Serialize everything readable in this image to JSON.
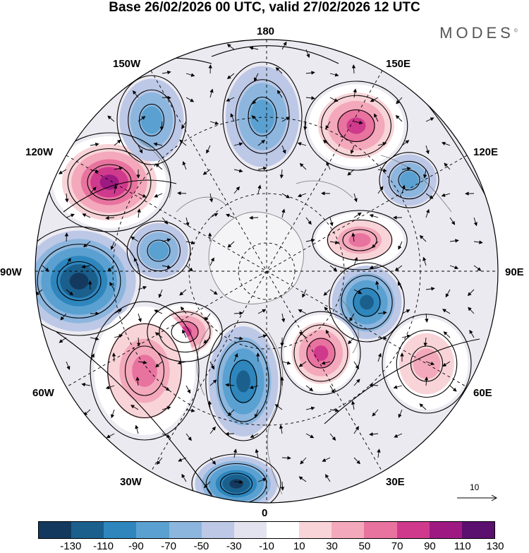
{
  "title": "Base 26/02/2026 00 UTC, valid 27/02/2026 12 UTC",
  "brand": "MODES",
  "brand_mark": "©",
  "longitude_labels": {
    "top": "180",
    "bottom": "0",
    "left": "90W",
    "right": "90E",
    "upper_left": "150W",
    "upper_right": "150E",
    "mid_upper_left": "120W",
    "mid_upper_right": "120E",
    "mid_lower_left": "60W",
    "mid_lower_right": "60E",
    "lower_left": "30W",
    "lower_right": "30E"
  },
  "reference_vector": {
    "label": "10"
  },
  "colorbar": {
    "ticks": [
      "-130",
      "-110",
      "-90",
      "-70",
      "-50",
      "-30",
      "-10",
      "10",
      "30",
      "50",
      "70",
      "90",
      "110",
      "130"
    ],
    "colors": [
      "#133a5e",
      "#1b5f8c",
      "#2e86bd",
      "#5aa1d1",
      "#8cb6de",
      "#bcc8e6",
      "#e3e3f0",
      "#ffffff",
      "#f8d4d8",
      "#f3a9bb",
      "#e8739f",
      "#cf3a8c",
      "#9e1a82",
      "#5b0f6e"
    ]
  },
  "anomaly_features": [
    {
      "name": "low-90w",
      "value": -120
    },
    {
      "name": "high-120w",
      "value": 115
    },
    {
      "name": "high-150e",
      "value": 95
    },
    {
      "name": "low-150w",
      "value": -55
    },
    {
      "name": "low-180",
      "value": -55
    },
    {
      "name": "high-110e",
      "value": 70
    },
    {
      "name": "low-90e",
      "value": -95
    },
    {
      "name": "high-60w",
      "value": 90
    },
    {
      "name": "high-45w",
      "value": 75
    },
    {
      "name": "low-15w",
      "value": -100
    },
    {
      "name": "high-20e",
      "value": 85
    },
    {
      "name": "high-60e",
      "value": 45
    },
    {
      "name": "low-0",
      "value": -105
    },
    {
      "name": "low-100w",
      "value": -45
    },
    {
      "name": "low-120e",
      "value": -45
    }
  ]
}
